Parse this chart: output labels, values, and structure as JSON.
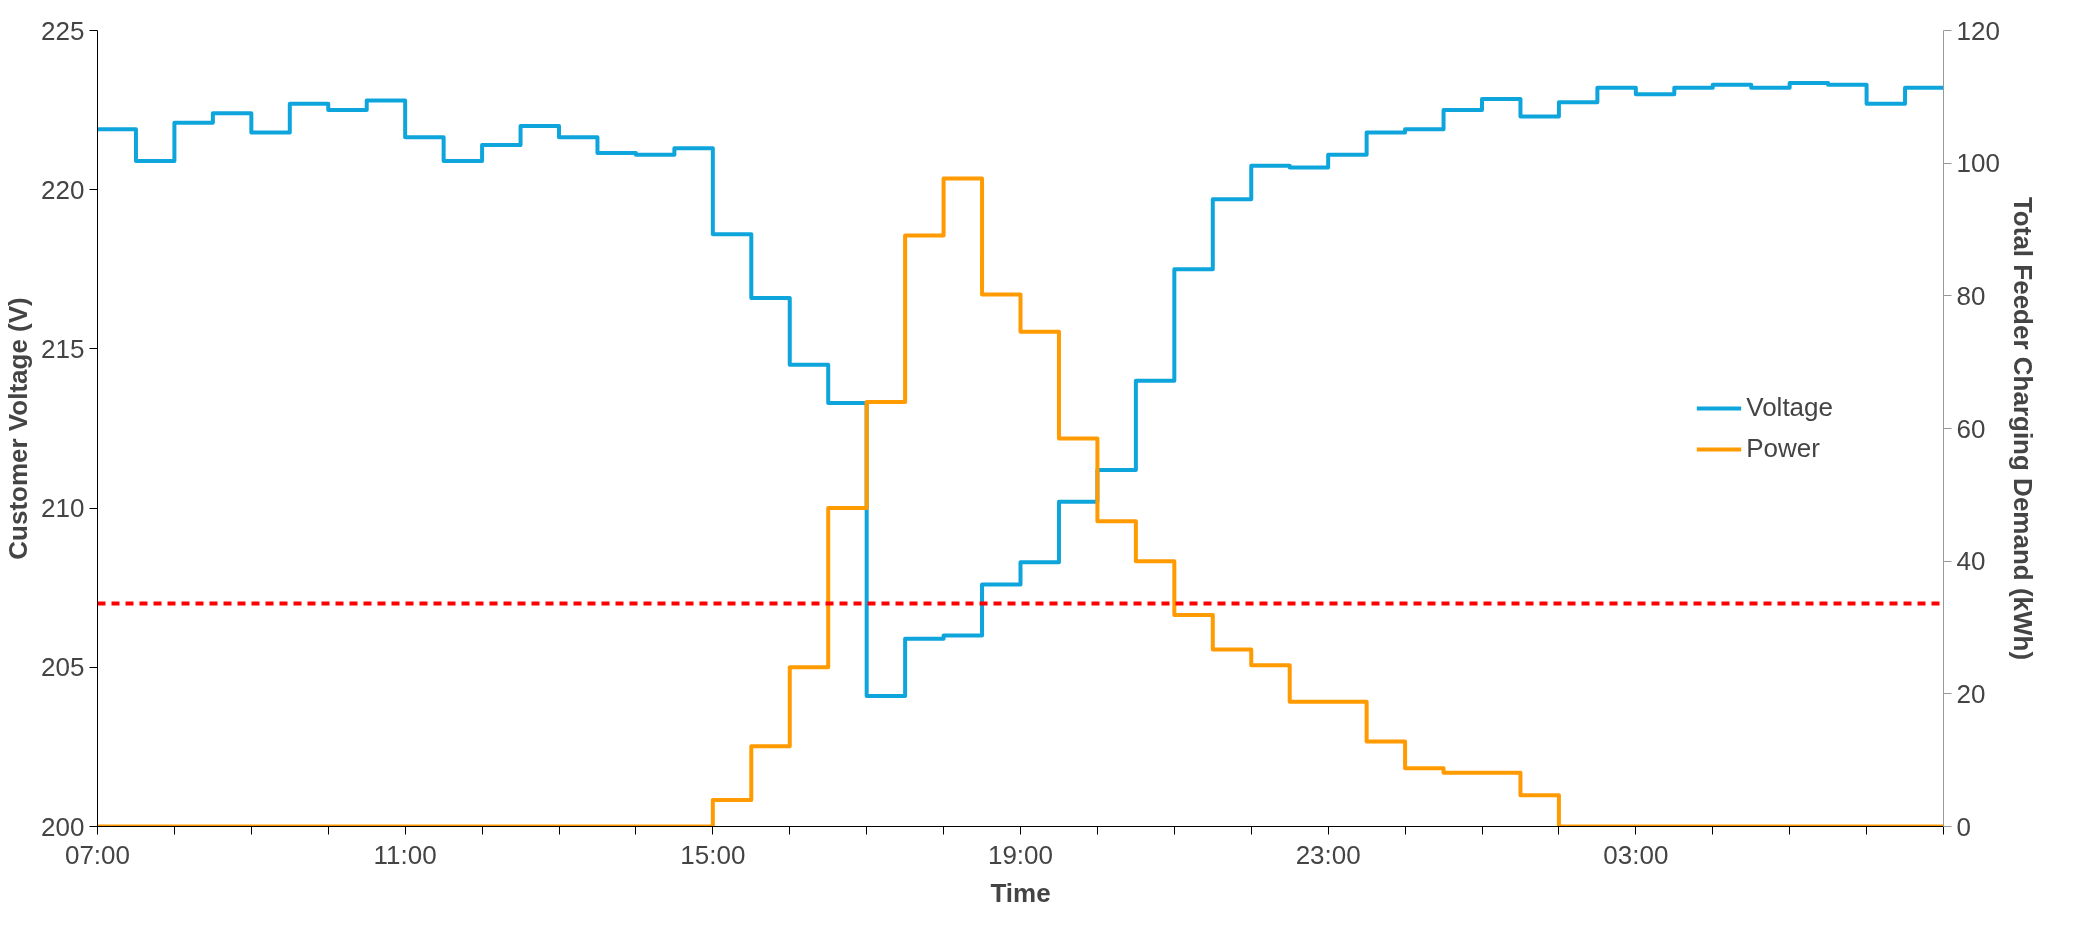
{
  "chart_data": {
    "type": "step",
    "xlabel": "Time",
    "ylabel": "Customer Voltage (V)",
    "y2label": "Total Feeder Charging Demand (kWh)",
    "x": [
      "2000-01-01T07:00",
      "2000-01-01T07:30",
      "2000-01-01T08:00",
      "2000-01-01T08:30",
      "2000-01-01T09:00",
      "2000-01-01T09:30",
      "2000-01-01T10:00",
      "2000-01-01T10:30",
      "2000-01-01T11:00",
      "2000-01-01T11:30",
      "2000-01-01T12:00",
      "2000-01-01T12:30",
      "2000-01-01T13:00",
      "2000-01-01T13:30",
      "2000-01-01T14:00",
      "2000-01-01T14:30",
      "2000-01-01T15:00",
      "2000-01-01T15:30",
      "2000-01-01T16:00",
      "2000-01-01T16:30",
      "2000-01-01T17:00",
      "2000-01-01T17:30",
      "2000-01-01T18:00",
      "2000-01-01T18:30",
      "2000-01-01T19:00",
      "2000-01-01T19:30",
      "2000-01-01T20:00",
      "2000-01-01T20:30",
      "2000-01-01T21:00",
      "2000-01-01T21:30",
      "2000-01-01T22:00",
      "2000-01-01T22:30",
      "2000-01-01T23:00",
      "2000-01-01T23:30",
      "2000-01-02T00:00",
      "2000-01-02T00:30",
      "2000-01-02T01:00",
      "2000-01-02T01:30",
      "2000-01-02T02:00",
      "2000-01-02T02:30",
      "2000-01-02T03:00",
      "2000-01-02T03:30",
      "2000-01-02T04:00",
      "2000-01-02T04:30",
      "2000-01-02T05:00",
      "2000-01-02T05:30",
      "2000-01-02T06:00",
      "2000-01-02T06:30",
      "2000-01-02T07:00"
    ],
    "xlim": [
      "2000-01-01T07:00",
      "2000-01-02T07:00"
    ],
    "xticks": [
      {
        "value": "2000-01-01T07:00",
        "label": "07:00"
      },
      {
        "value": "2000-01-01T08:00",
        "label": null
      },
      {
        "value": "2000-01-01T09:00",
        "label": null
      },
      {
        "value": "2000-01-01T10:00",
        "label": null
      },
      {
        "value": "2000-01-01T11:00",
        "label": "11:00"
      },
      {
        "value": "2000-01-01T12:00",
        "label": null
      },
      {
        "value": "2000-01-01T13:00",
        "label": null
      },
      {
        "value": "2000-01-01T14:00",
        "label": null
      },
      {
        "value": "2000-01-01T15:00",
        "label": "15:00"
      },
      {
        "value": "2000-01-01T16:00",
        "label": null
      },
      {
        "value": "2000-01-01T17:00",
        "label": null
      },
      {
        "value": "2000-01-01T18:00",
        "label": null
      },
      {
        "value": "2000-01-01T19:00",
        "label": "19:00"
      },
      {
        "value": "2000-01-01T20:00",
        "label": null
      },
      {
        "value": "2000-01-01T21:00",
        "label": null
      },
      {
        "value": "2000-01-01T22:00",
        "label": null
      },
      {
        "value": "2000-01-01T23:00",
        "label": "23:00"
      },
      {
        "value": "2000-01-02T00:00",
        "label": null
      },
      {
        "value": "2000-01-02T01:00",
        "label": null
      },
      {
        "value": "2000-01-02T02:00",
        "label": null
      },
      {
        "value": "2000-01-02T03:00",
        "label": "03:00"
      },
      {
        "value": "2000-01-02T04:00",
        "label": null
      },
      {
        "value": "2000-01-02T05:00",
        "label": null
      },
      {
        "value": "2000-01-02T06:00",
        "label": null
      },
      {
        "value": "2000-01-02T07:00",
        "label": null
      }
    ],
    "ylim": [
      200,
      225
    ],
    "yticks": [
      200,
      205,
      210,
      215,
      220,
      225
    ],
    "y2lim": [
      0,
      120
    ],
    "y2ticks": [
      0,
      20,
      40,
      60,
      80,
      100,
      120
    ],
    "series": [
      {
        "name": "Voltage",
        "color": "#0ea5dc",
        "values": [
          221.9,
          220.9,
          222.1,
          222.4,
          221.8,
          222.7,
          222.5,
          222.8,
          221.65,
          220.9,
          221.4,
          222.0,
          221.65,
          221.15,
          221.1,
          221.3,
          218.6,
          216.6,
          214.5,
          213.3,
          204.1,
          205.9,
          206.0,
          207.6,
          208.3,
          210.2,
          211.2,
          214.0,
          217.5,
          219.7,
          220.75,
          220.7,
          221.1,
          221.8,
          221.9,
          222.5,
          222.85,
          222.3,
          222.75,
          223.2,
          223.0,
          223.2,
          223.3,
          223.2,
          223.35,
          223.3,
          222.7,
          223.2,
          223.2
        ]
      },
      {
        "name": "Power",
        "color": "#ff9a00",
        "axis": "y2",
        "values": [
          0,
          0,
          0,
          0,
          0,
          0,
          0,
          0,
          0,
          0,
          0,
          0,
          0,
          0,
          0,
          0,
          4.0,
          12.1,
          24.0,
          48.0,
          64.0,
          89.1,
          97.7,
          80.2,
          74.6,
          58.5,
          46.0,
          40.0,
          31.9,
          26.7,
          24.3,
          18.8,
          18.8,
          12.8,
          8.8,
          8.1,
          8.1,
          4.7,
          0,
          0,
          0,
          0,
          0,
          0,
          0,
          0,
          0,
          0,
          0
        ]
      }
    ],
    "ref_lines": [
      {
        "axis": "y",
        "value": 207,
        "label": null,
        "color": "#ff0000",
        "line_style": "dashed"
      }
    ],
    "legend": "right",
    "grid": false
  }
}
